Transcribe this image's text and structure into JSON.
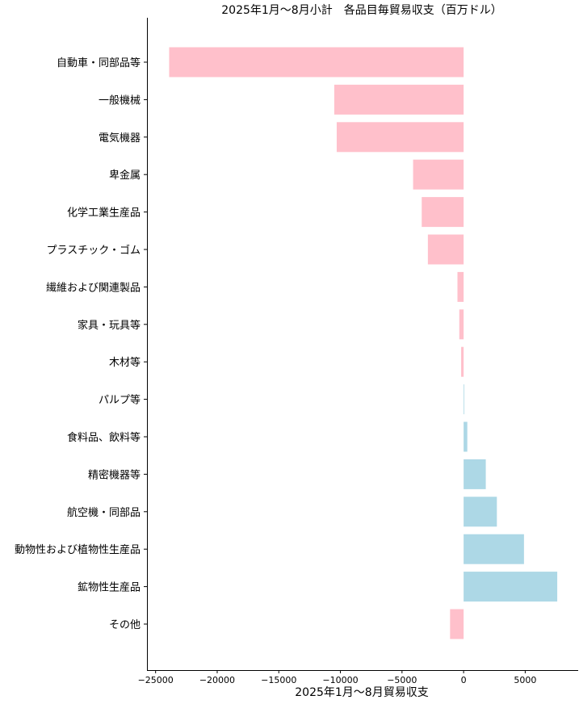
{
  "chart_data": {
    "type": "bar",
    "orientation": "horizontal",
    "title": "2025年1月〜8月小計　各品目毎貿易収支（百万ドル）",
    "xlabel": "2025年1月〜8月貿易収支",
    "ylabel": "",
    "xlim": [
      -25700,
      9300
    ],
    "xticks": [
      -25000,
      -20000,
      -15000,
      -10000,
      -5000,
      0,
      5000
    ],
    "xtick_labels": [
      "−25000",
      "−20000",
      "−15000",
      "−10000",
      "−5000",
      "0",
      "5000"
    ],
    "categories": [
      "自動車・同部品等",
      "一般機械",
      "電気機器",
      "卑金属",
      "化学工業生産品",
      "プラスチック・ゴム",
      "繊維および関連製品",
      "家具・玩具等",
      "木材等",
      "パルプ等",
      "食料品、飲料等",
      "精密機器等",
      "航空機・同部品",
      "動物性および植物性生産品",
      "鉱物性生産品",
      "その他"
    ],
    "values": [
      -23900,
      -10500,
      -10300,
      -4100,
      -3400,
      -2900,
      -500,
      -350,
      -200,
      50,
      300,
      1800,
      2700,
      4900,
      7600,
      -1100
    ],
    "colors": {
      "negative": "#ffc0cb",
      "positive": "#add8e6"
    },
    "grid": false,
    "legend": "none"
  }
}
